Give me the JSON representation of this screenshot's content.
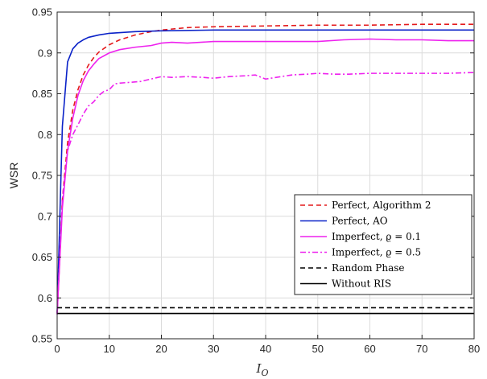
{
  "chart_data": {
    "type": "line",
    "title": "",
    "xlabel": "I_O",
    "xlabel_main": "I",
    "xlabel_sub": "O",
    "ylabel": "WSR",
    "xlim": [
      0,
      80
    ],
    "ylim": [
      0.55,
      0.95
    ],
    "xticks": [
      0,
      10,
      20,
      30,
      40,
      50,
      60,
      70,
      80
    ],
    "yticks": [
      0.55,
      0.6,
      0.65,
      0.7,
      0.75,
      0.8,
      0.85,
      0.9,
      0.95
    ],
    "xtick_labels": [
      "0",
      "10",
      "20",
      "30",
      "40",
      "50",
      "60",
      "70",
      "80"
    ],
    "ytick_labels": [
      "0.55",
      "0.6",
      "0.65",
      "0.7",
      "0.75",
      "0.8",
      "0.85",
      "0.9",
      "0.95"
    ],
    "grid": true,
    "legend_position": "lower-right",
    "series": [
      {
        "name": "Perfect, Algorithm 2",
        "color": "#e41a1c",
        "dash": "dashed",
        "x": [
          0,
          1,
          2,
          3,
          4,
          5,
          6,
          7,
          8,
          10,
          12,
          15,
          18,
          20,
          25,
          30,
          40,
          50,
          60,
          70,
          80
        ],
        "y": [
          0.58,
          0.72,
          0.79,
          0.83,
          0.855,
          0.873,
          0.885,
          0.894,
          0.901,
          0.91,
          0.916,
          0.922,
          0.926,
          0.928,
          0.931,
          0.932,
          0.933,
          0.934,
          0.934,
          0.935,
          0.935
        ]
      },
      {
        "name": "Perfect, AO",
        "color": "#0a22c8",
        "dash": "solid",
        "x": [
          0,
          1,
          2,
          3,
          4,
          5,
          6,
          8,
          10,
          15,
          20,
          30,
          40,
          50,
          60,
          70,
          80
        ],
        "y": [
          0.58,
          0.81,
          0.889,
          0.905,
          0.912,
          0.916,
          0.919,
          0.922,
          0.924,
          0.926,
          0.927,
          0.928,
          0.928,
          0.928,
          0.928,
          0.928,
          0.928
        ]
      },
      {
        "name": "Imperfect, ϱ = 0.1",
        "color": "#ee22ee",
        "dash": "solid",
        "x": [
          0,
          1,
          2,
          3,
          4,
          5,
          6,
          7,
          8,
          10,
          12,
          15,
          18,
          20,
          22,
          25,
          30,
          35,
          40,
          45,
          50,
          55,
          60,
          65,
          70,
          75,
          80
        ],
        "y": [
          0.58,
          0.71,
          0.78,
          0.82,
          0.848,
          0.866,
          0.878,
          0.886,
          0.893,
          0.9,
          0.904,
          0.907,
          0.909,
          0.912,
          0.913,
          0.912,
          0.914,
          0.914,
          0.914,
          0.914,
          0.914,
          0.916,
          0.917,
          0.916,
          0.916,
          0.915,
          0.915
        ]
      },
      {
        "name": "Imperfect, ϱ = 0.5",
        "color": "#ee22ee",
        "dash": "dashdot",
        "x": [
          0,
          1,
          2,
          3,
          4,
          5,
          6,
          7,
          8,
          9,
          10,
          11,
          12,
          14,
          16,
          18,
          20,
          22,
          25,
          28,
          30,
          33,
          36,
          38,
          40,
          42,
          45,
          48,
          50,
          53,
          56,
          60,
          65,
          70,
          75,
          80
        ],
        "y": [
          0.58,
          0.72,
          0.78,
          0.8,
          0.812,
          0.825,
          0.835,
          0.84,
          0.848,
          0.853,
          0.855,
          0.862,
          0.863,
          0.864,
          0.865,
          0.868,
          0.871,
          0.87,
          0.871,
          0.87,
          0.869,
          0.871,
          0.872,
          0.873,
          0.868,
          0.87,
          0.873,
          0.874,
          0.875,
          0.874,
          0.874,
          0.875,
          0.875,
          0.875,
          0.875,
          0.876
        ]
      },
      {
        "name": "Random Phase",
        "color": "#000000",
        "dash": "dashed",
        "x": [
          0,
          80
        ],
        "y": [
          0.588,
          0.588
        ]
      },
      {
        "name": "Without RIS",
        "color": "#000000",
        "dash": "solid",
        "x": [
          0,
          80
        ],
        "y": [
          0.581,
          0.581
        ]
      }
    ]
  }
}
